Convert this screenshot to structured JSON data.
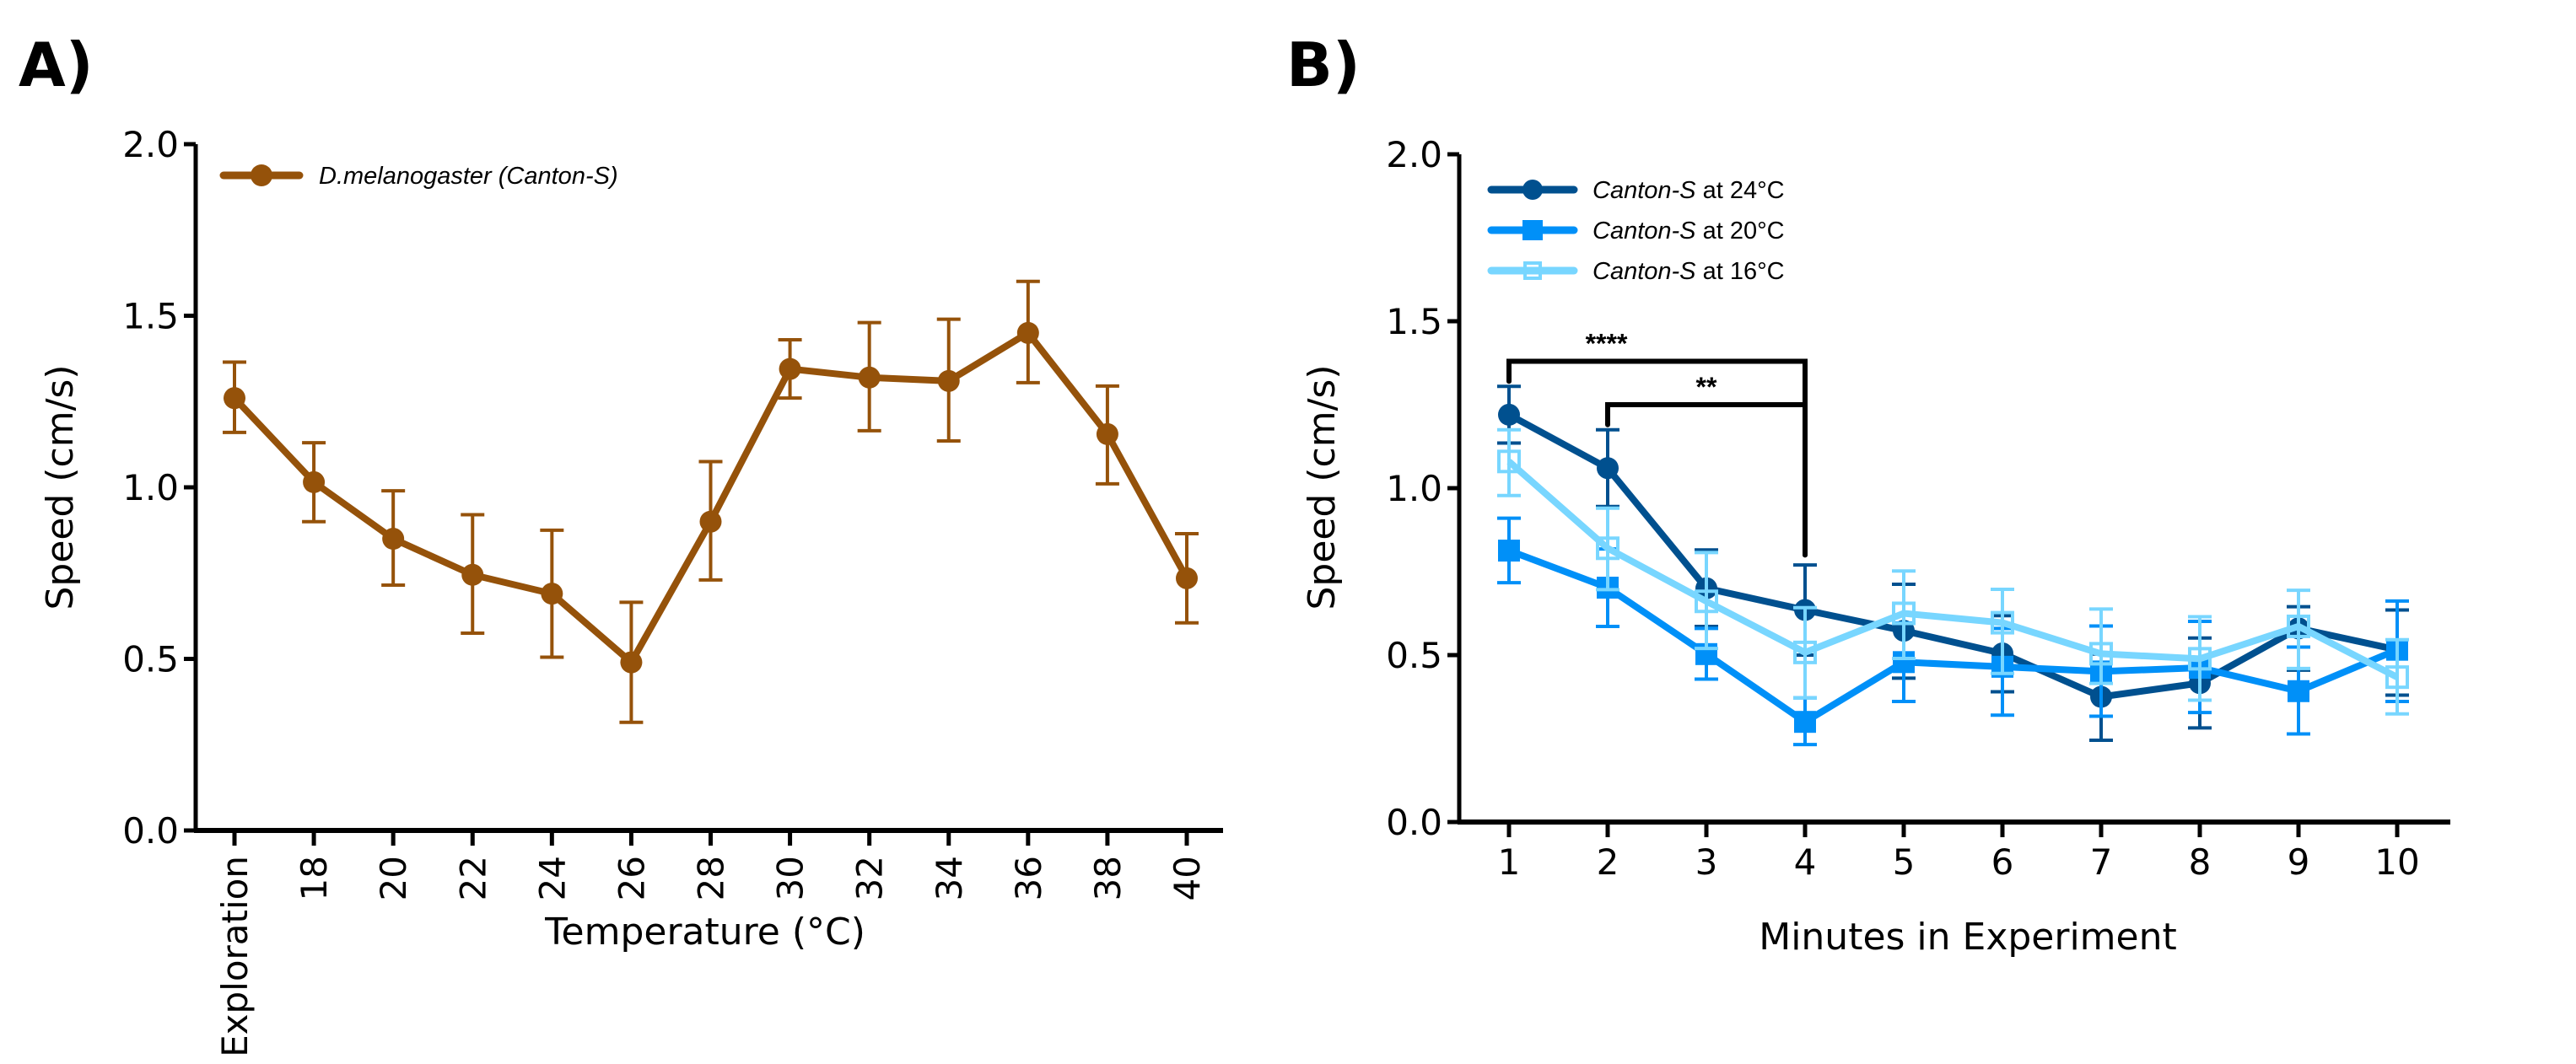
{
  "panels": {
    "a": {
      "letter": "A)"
    },
    "b": {
      "letter": "B)"
    }
  },
  "colors": {
    "brown": "#95520A",
    "dark_blue": "#00508F",
    "medium_blue": "#0090F8",
    "light_blue": "#78D6FF",
    "axis": "#000000"
  },
  "chart_data": [
    {
      "type": "line",
      "panel": "A",
      "title": "",
      "xlabel": "Temperature (°C)",
      "ylabel": "Speed (cm/s)",
      "ylim": [
        0,
        2.0
      ],
      "yticks": [
        "0.0",
        "0.5",
        "1.0",
        "1.5",
        "2.0"
      ],
      "categories": [
        "Exploration",
        "18",
        "20",
        "22",
        "24",
        "26",
        "28",
        "30",
        "32",
        "34",
        "36",
        "38",
        "40"
      ],
      "grid": false,
      "legend_position": "top-left",
      "series": [
        {
          "name": "D.melanogaster (Canton-S)",
          "color_key": "brown",
          "marker": "circle",
          "values": [
            1.26,
            1.015,
            0.85,
            0.745,
            0.69,
            0.49,
            0.9,
            1.345,
            1.32,
            1.31,
            1.45,
            1.155,
            0.735
          ],
          "err_upper": [
            1.365,
            1.13,
            0.99,
            0.92,
            0.875,
            0.665,
            1.075,
            1.43,
            1.48,
            1.49,
            1.6,
            1.295,
            0.865
          ],
          "err_lower": [
            1.16,
            0.9,
            0.715,
            0.575,
            0.505,
            0.315,
            0.73,
            1.26,
            1.165,
            1.135,
            1.305,
            1.01,
            0.605
          ]
        }
      ]
    },
    {
      "type": "line",
      "panel": "B",
      "title": "",
      "xlabel": "Minutes in Experiment",
      "ylabel": "Speed (cm/s)",
      "ylim": [
        0,
        2.0
      ],
      "yticks": [
        "0.0",
        "0.5",
        "1.0",
        "1.5",
        "2.0"
      ],
      "categories": [
        "1",
        "2",
        "3",
        "4",
        "5",
        "6",
        "7",
        "8",
        "9",
        "10"
      ],
      "grid": false,
      "legend_position": "top-left",
      "series": [
        {
          "name_italic": "Canton-S",
          "name_rest": " at 24°C",
          "color_key": "dark_blue",
          "marker": "circle",
          "values": [
            1.22,
            1.06,
            0.7,
            0.635,
            0.573,
            0.505,
            0.375,
            0.416,
            0.58,
            0.516
          ],
          "err_upper": [
            1.305,
            1.175,
            0.815,
            0.77,
            0.712,
            0.618,
            0.503,
            0.551,
            0.645,
            0.635
          ],
          "err_lower": [
            1.135,
            0.945,
            0.586,
            0.5,
            0.431,
            0.39,
            0.245,
            0.282,
            0.455,
            0.38
          ]
        },
        {
          "name_italic": "Canton-S",
          "name_rest": " at 20°C",
          "color_key": "medium_blue",
          "marker": "square",
          "values": [
            0.813,
            0.702,
            0.503,
            0.3,
            0.479,
            0.465,
            0.451,
            0.462,
            0.392,
            0.516
          ],
          "err_upper": [
            0.91,
            0.818,
            0.58,
            0.372,
            0.596,
            0.58,
            0.587,
            0.601,
            0.524,
            0.662
          ],
          "err_lower": [
            0.717,
            0.586,
            0.428,
            0.232,
            0.361,
            0.32,
            0.317,
            0.328,
            0.264,
            0.361
          ]
        },
        {
          "name_italic": "Canton-S",
          "name_rest": " at 16°C",
          "color_key": "light_blue",
          "marker": "open-square",
          "values": [
            1.08,
            0.82,
            0.661,
            0.508,
            0.625,
            0.597,
            0.504,
            0.489,
            0.586,
            0.434
          ],
          "err_upper": [
            1.175,
            0.94,
            0.807,
            0.642,
            0.752,
            0.697,
            0.638,
            0.615,
            0.694,
            0.546
          ],
          "err_lower": [
            0.978,
            0.696,
            0.52,
            0.372,
            0.49,
            0.445,
            0.415,
            0.365,
            0.46,
            0.324
          ]
        }
      ],
      "annotations": [
        {
          "label": "****",
          "from_category": "1",
          "to_category": "4",
          "bracket_y": 1.38,
          "drop_from_y": 1.32,
          "drop_to_y": 0.8
        },
        {
          "label": "**",
          "from_category": "2",
          "to_category": "4",
          "bracket_y": 1.25,
          "drop_from_y": 1.19,
          "drop_to_y": 0.8
        }
      ]
    }
  ]
}
